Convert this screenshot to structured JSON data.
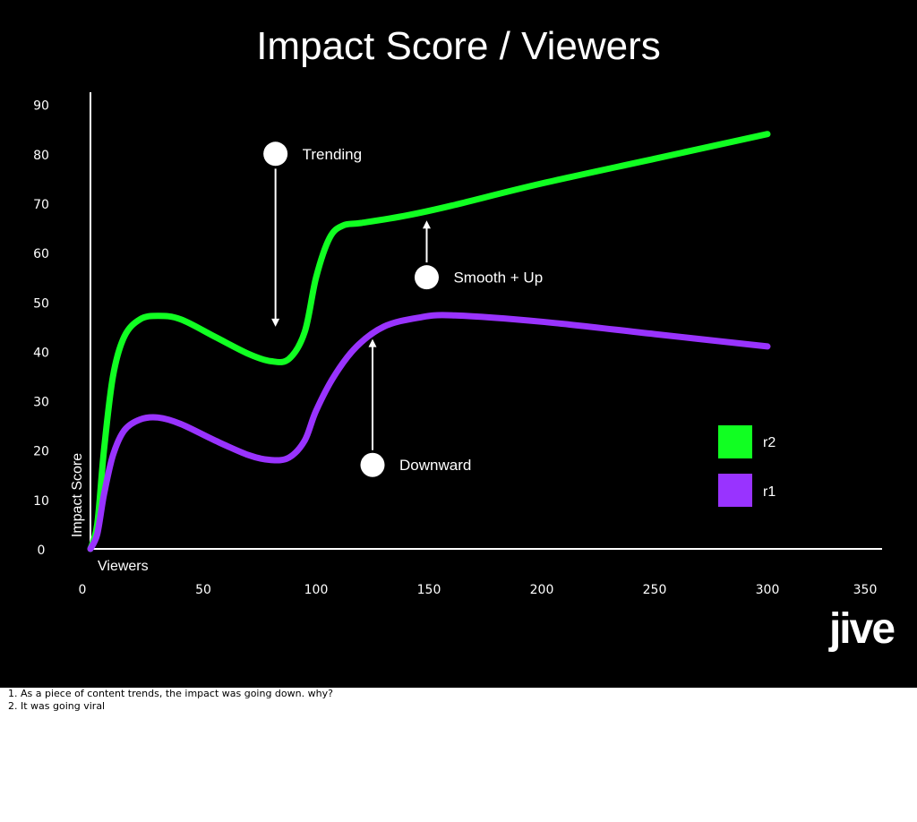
{
  "chart_data": {
    "type": "line",
    "title": "Impact Score / Viewers",
    "xlabel": "Viewers",
    "ylabel": "Impact Score",
    "xlim": [
      0,
      350
    ],
    "ylim": [
      0,
      90
    ],
    "x_ticks": [
      "0",
      "50",
      "100",
      "150",
      "200",
      "250",
      "300",
      "350"
    ],
    "y_ticks": [
      "0",
      "10",
      "20",
      "30",
      "40",
      "50",
      "60",
      "70",
      "80",
      "90"
    ],
    "series": [
      {
        "name": "r2",
        "color": "#11ff22",
        "points": [
          [
            0,
            0
          ],
          [
            3,
            5
          ],
          [
            6,
            20
          ],
          [
            10,
            35
          ],
          [
            15,
            43
          ],
          [
            22,
            46.5
          ],
          [
            30,
            47.2
          ],
          [
            40,
            46.5
          ],
          [
            55,
            43
          ],
          [
            70,
            39.5
          ],
          [
            80,
            38
          ],
          [
            88,
            38.5
          ],
          [
            95,
            44
          ],
          [
            100,
            55
          ],
          [
            106,
            63
          ],
          [
            112,
            65.5
          ],
          [
            120,
            66
          ],
          [
            140,
            67.5
          ],
          [
            160,
            69.5
          ],
          [
            200,
            74
          ],
          [
            250,
            79
          ],
          [
            300,
            84
          ]
        ]
      },
      {
        "name": "r1",
        "color": "#9933ff",
        "points": [
          [
            0,
            0
          ],
          [
            3,
            3
          ],
          [
            6,
            11
          ],
          [
            10,
            19
          ],
          [
            15,
            24
          ],
          [
            22,
            26.2
          ],
          [
            30,
            26.6
          ],
          [
            40,
            25.3
          ],
          [
            55,
            22
          ],
          [
            70,
            19
          ],
          [
            80,
            18
          ],
          [
            88,
            18.5
          ],
          [
            95,
            22
          ],
          [
            100,
            28
          ],
          [
            108,
            35
          ],
          [
            118,
            41
          ],
          [
            130,
            45
          ],
          [
            145,
            46.8
          ],
          [
            160,
            47.3
          ],
          [
            200,
            46
          ],
          [
            250,
            43.5
          ],
          [
            300,
            41
          ]
        ]
      }
    ],
    "legend": [
      {
        "label": "r2",
        "color": "#11ff22"
      },
      {
        "label": "r1",
        "color": "#9933ff"
      }
    ],
    "legend_placement": "bottom-right",
    "grid": false,
    "annotations": [
      {
        "text": "Trending",
        "marker": [
          82,
          80
        ],
        "arrow_from": [
          82,
          77
        ],
        "arrow_to": [
          82,
          45
        ]
      },
      {
        "text": "Smooth + Up",
        "marker": [
          149,
          55
        ],
        "arrow_from": [
          149,
          58
        ],
        "arrow_to": [
          149,
          66.5
        ]
      },
      {
        "text": "Downward",
        "marker": [
          125,
          17
        ],
        "arrow_from": [
          125,
          20
        ],
        "arrow_to": [
          125,
          42.5
        ]
      }
    ]
  },
  "logo_text": "jive",
  "notes": [
    "1. As a piece of content trends, the impact was going down. why?",
    "2. It was going viral"
  ]
}
